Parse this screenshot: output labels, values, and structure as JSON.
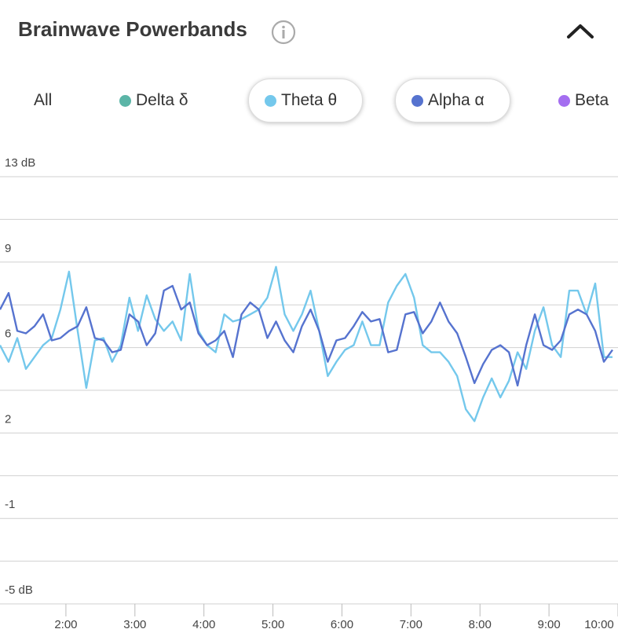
{
  "header": {
    "title": "Brainwave Powerbands"
  },
  "filters": {
    "all": "All",
    "others": [
      {
        "name": "Delta δ",
        "color": "#5bb5a7"
      },
      {
        "name": "Beta",
        "color": "#a46ef0"
      }
    ]
  },
  "chart_data": {
    "type": "line",
    "x": [
      1.045,
      1.17,
      1.295,
      1.42,
      1.545,
      1.67,
      1.795,
      1.92,
      2.045,
      2.17,
      2.295,
      2.42,
      2.545,
      2.67,
      2.795,
      2.92,
      3.045,
      3.17,
      3.295,
      3.42,
      3.545,
      3.67,
      3.795,
      3.92,
      4.045,
      4.17,
      4.295,
      4.42,
      4.545,
      4.67,
      4.795,
      4.92,
      5.045,
      5.17,
      5.295,
      5.42,
      5.545,
      5.67,
      5.795,
      5.92,
      6.045,
      6.17,
      6.295,
      6.42,
      6.545,
      6.67,
      6.795,
      6.92,
      7.045,
      7.17,
      7.295,
      7.42,
      7.545,
      7.67,
      7.795,
      7.92,
      8.045,
      8.17,
      8.295,
      8.42,
      8.545,
      8.67,
      8.795,
      8.92,
      9.045,
      9.17,
      9.295,
      9.42,
      9.545,
      9.67,
      9.795,
      9.92
    ],
    "series": [
      {
        "name": "Theta θ",
        "color": "#74c8ec",
        "values": [
          5.9,
          5.2,
          6.2,
          4.9,
          5.4,
          5.9,
          6.2,
          7.4,
          9.0,
          6.5,
          4.1,
          6.1,
          6.2,
          5.2,
          5.9,
          7.9,
          6.5,
          8.0,
          7.0,
          6.5,
          6.9,
          6.1,
          8.9,
          6.5,
          5.9,
          5.6,
          7.2,
          6.9,
          7.0,
          7.2,
          7.4,
          7.9,
          9.2,
          7.2,
          6.5,
          7.2,
          8.2,
          6.5,
          4.6,
          5.2,
          5.7,
          5.9,
          6.9,
          5.9,
          5.9,
          7.7,
          8.4,
          8.9,
          7.9,
          5.9,
          5.6,
          5.6,
          5.2,
          4.6,
          3.2,
          2.7,
          3.7,
          4.5,
          3.7,
          4.4,
          5.6,
          4.9,
          6.5,
          7.5,
          5.9,
          5.4,
          8.2,
          8.2,
          7.2,
          8.5,
          5.4,
          5.4
        ]
      },
      {
        "name": "Alpha α",
        "color": "#5673cf",
        "values": [
          7.4,
          8.1,
          6.5,
          6.4,
          6.7,
          7.2,
          6.1,
          6.2,
          6.5,
          6.7,
          7.5,
          6.2,
          6.1,
          5.6,
          5.7,
          7.2,
          6.9,
          5.9,
          6.4,
          8.2,
          8.4,
          7.4,
          7.7,
          6.4,
          5.9,
          6.1,
          6.5,
          5.4,
          7.2,
          7.7,
          7.4,
          6.2,
          6.9,
          6.1,
          5.6,
          6.7,
          7.4,
          6.5,
          5.2,
          6.1,
          6.2,
          6.7,
          7.3,
          6.9,
          7.0,
          5.6,
          5.7,
          7.2,
          7.3,
          6.4,
          6.9,
          7.7,
          6.9,
          6.4,
          5.4,
          4.3,
          5.1,
          5.7,
          5.9,
          5.6,
          4.2,
          5.9,
          7.2,
          5.9,
          5.7,
          6.1,
          7.2,
          7.4,
          7.2,
          6.5,
          5.2,
          5.7
        ]
      }
    ],
    "xlim": [
      1.045,
      10.0
    ],
    "xticks": [
      {
        "value": 2,
        "label": "2:00"
      },
      {
        "value": 3,
        "label": "3:00"
      },
      {
        "value": 4,
        "label": "4:00"
      },
      {
        "value": 5,
        "label": "5:00"
      },
      {
        "value": 6,
        "label": "6:00"
      },
      {
        "value": 7,
        "label": "7:00"
      },
      {
        "value": 8,
        "label": "8:00"
      },
      {
        "value": 9,
        "label": "9:00"
      },
      {
        "value": 10,
        "label": "10:00"
      }
    ],
    "ylim": [
      -5,
      13
    ],
    "yticks": [
      {
        "value": 13,
        "label": "13 dB"
      },
      {
        "value": 9.4,
        "label": "9"
      },
      {
        "value": 5.8,
        "label": "6"
      },
      {
        "value": 2.2,
        "label": "2"
      },
      {
        "value": -1.4,
        "label": "-1"
      },
      {
        "value": -5,
        "label": "-5 dB"
      }
    ],
    "ygrid": [
      11.2,
      7.6,
      4.0,
      0.4,
      -3.2
    ],
    "grid": true
  }
}
